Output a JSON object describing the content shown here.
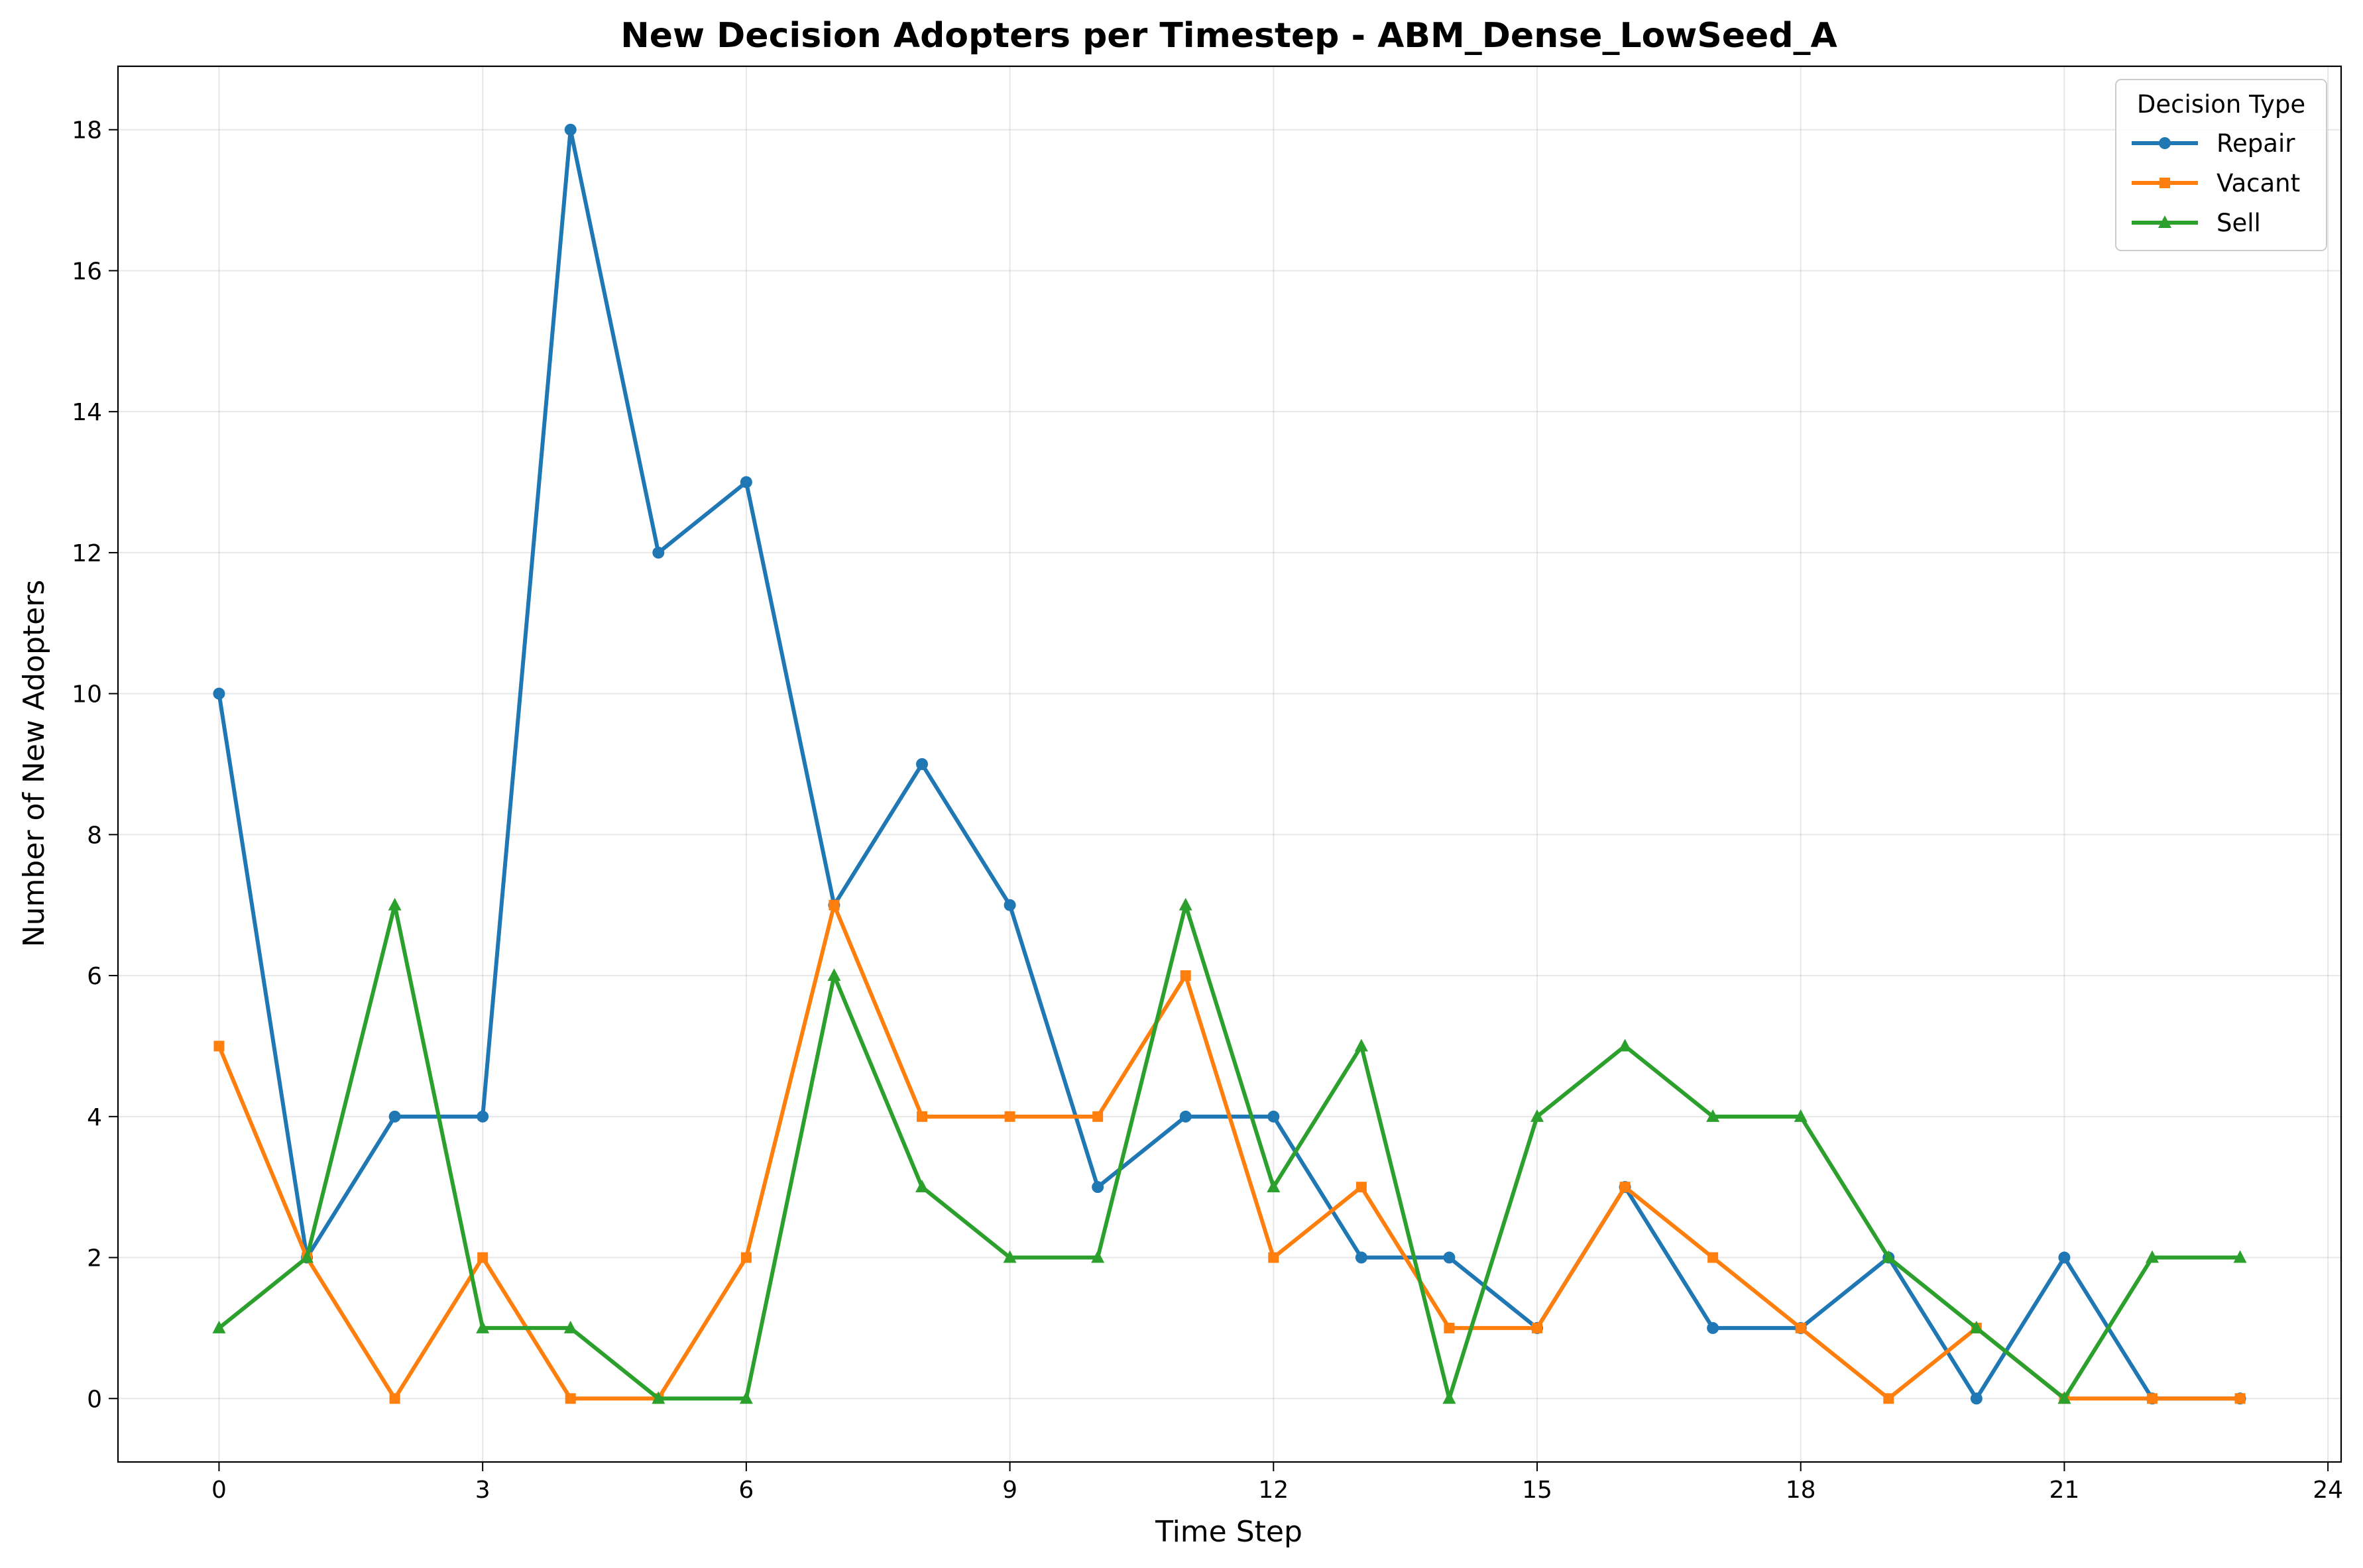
{
  "chart_data": {
    "type": "line",
    "title": "New Decision Adopters per Timestep - ABM_Dense_LowSeed_A",
    "xlabel": "Time Step",
    "ylabel": "Number of New Adopters",
    "x": [
      0,
      1,
      2,
      3,
      4,
      5,
      6,
      7,
      8,
      9,
      10,
      11,
      12,
      13,
      14,
      15,
      16,
      17,
      18,
      19,
      20,
      21,
      22,
      23
    ],
    "xlim": [
      -1.15,
      24.15
    ],
    "ylim": [
      -0.9,
      18.9
    ],
    "x_ticks": [
      0,
      3,
      6,
      9,
      12,
      15,
      18,
      21,
      24
    ],
    "y_ticks": [
      0,
      2,
      4,
      6,
      8,
      10,
      12,
      14,
      16,
      18
    ],
    "grid": true,
    "legend": {
      "title": "Decision Type",
      "position": "top-right"
    },
    "series": [
      {
        "name": "Repair",
        "color": "#1f77b4",
        "marker": "circle",
        "values": [
          10,
          2,
          4,
          4,
          18,
          12,
          13,
          7,
          9,
          7,
          3,
          4,
          4,
          2,
          2,
          1,
          3,
          1,
          1,
          2,
          0,
          2,
          0,
          0
        ]
      },
      {
        "name": "Vacant",
        "color": "#ff7f0e",
        "marker": "square",
        "values": [
          5,
          2,
          0,
          2,
          0,
          0,
          2,
          7,
          4,
          4,
          4,
          6,
          2,
          3,
          1,
          1,
          3,
          2,
          1,
          0,
          1,
          0,
          0,
          0
        ]
      },
      {
        "name": "Sell",
        "color": "#2ca02c",
        "marker": "triangle",
        "values": [
          1,
          2,
          7,
          1,
          1,
          0,
          0,
          6,
          3,
          2,
          2,
          7,
          3,
          5,
          0,
          4,
          5,
          4,
          4,
          2,
          1,
          0,
          2,
          2
        ]
      }
    ]
  }
}
